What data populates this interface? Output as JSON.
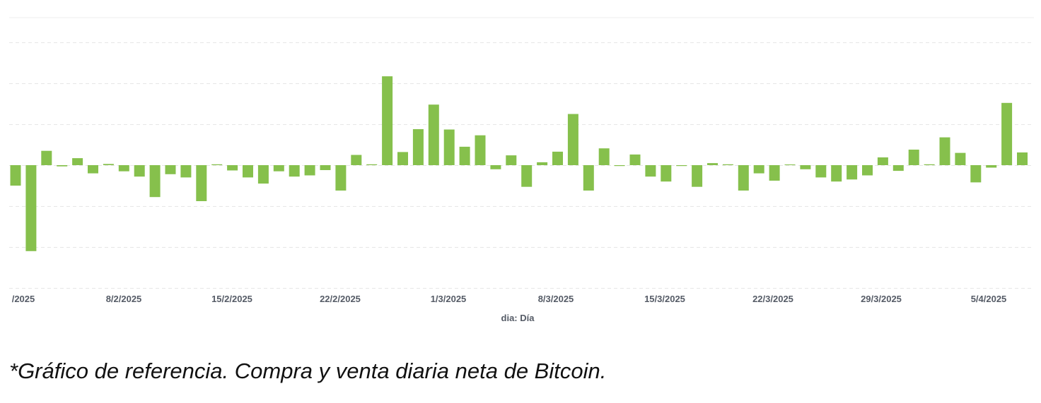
{
  "chart_data": {
    "type": "bar",
    "xlabel": "dia: Día",
    "ylabel": "",
    "y_tick_labels_visible": false,
    "grid": true,
    "colors": {
      "bar": "#86c04c",
      "grid": "#e6e6e6",
      "label": "#555b66"
    },
    "x_tick_labels": [
      "/2025",
      "8/2/2025",
      "15/2/2025",
      "22/2/2025",
      "1/3/2025",
      "8/3/2025",
      "15/3/2025",
      "22/3/2025",
      "29/3/2025",
      "5/4/2025"
    ],
    "ylim": [
      -3,
      3.5
    ],
    "values": [
      -0.5,
      -2.1,
      0.35,
      -0.03,
      0.17,
      -0.2,
      0.03,
      -0.15,
      -0.28,
      -0.78,
      -0.22,
      -0.3,
      -0.88,
      0.02,
      -0.13,
      -0.3,
      -0.45,
      -0.15,
      -0.28,
      -0.25,
      -0.12,
      -0.62,
      0.25,
      0.02,
      2.17,
      0.32,
      0.88,
      1.48,
      0.87,
      0.45,
      0.73,
      -0.1,
      0.24,
      -0.53,
      0.07,
      0.33,
      1.25,
      -0.62,
      0.41,
      -0.02,
      0.26,
      -0.28,
      -0.4,
      -0.02,
      -0.53,
      0.05,
      0.02,
      -0.62,
      -0.2,
      -0.38,
      0.01,
      -0.1,
      -0.3,
      -0.4,
      -0.35,
      -0.25,
      0.19,
      -0.14,
      0.38,
      0.02,
      0.68,
      0.3,
      -0.42,
      -0.06,
      1.52,
      0.31
    ]
  },
  "caption": "*Gráfico de referencia. Compra y venta diaria neta de Bitcoin."
}
